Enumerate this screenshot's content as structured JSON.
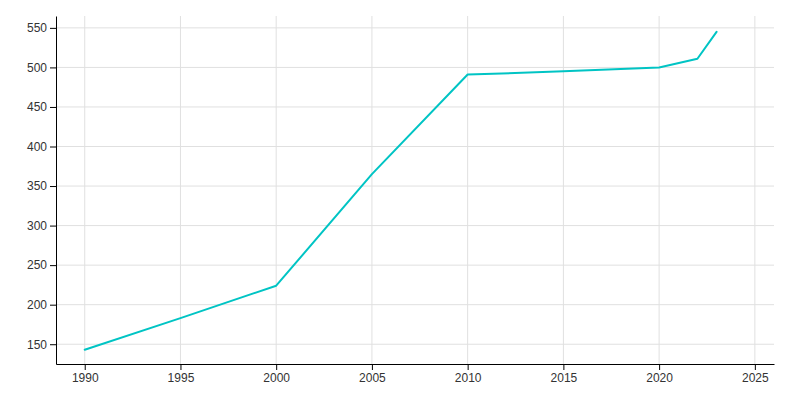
{
  "chart_data": {
    "type": "line",
    "x": [
      1990,
      1995,
      2000,
      2005,
      2010,
      2015,
      2020,
      2022,
      2023
    ],
    "values": [
      143,
      183,
      224,
      365,
      491,
      495,
      500,
      511,
      545
    ],
    "color": "#00C4C4",
    "xlim": [
      1988.5,
      2026
    ],
    "ylim": [
      125,
      565
    ],
    "xticks": [
      1990,
      1995,
      2000,
      2005,
      2010,
      2015,
      2020,
      2025
    ],
    "yticks": [
      150,
      200,
      250,
      300,
      350,
      400,
      450,
      500,
      550
    ],
    "grid": true
  }
}
